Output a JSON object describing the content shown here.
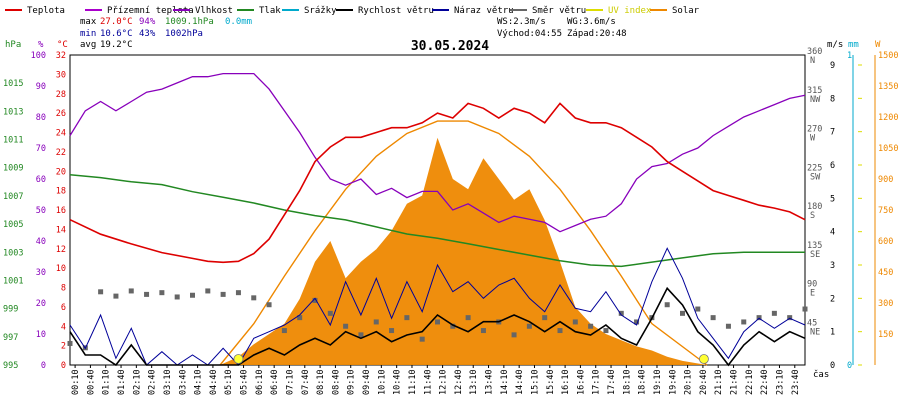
{
  "chart_data": {
    "type": "line",
    "title": "30.05.2024",
    "xlabel": "čas",
    "legend": [
      {
        "name": "Teplota",
        "color": "#dd0000"
      },
      {
        "name": "Přízemní teplota",
        "color": "#aa00cc"
      },
      {
        "name": "Vlhkost",
        "color": "#8800bb"
      },
      {
        "name": "Tlak",
        "color": "#228822"
      },
      {
        "name": "Srážky",
        "color": "#00aacc"
      },
      {
        "name": "Rychlost větru",
        "color": "#000000"
      },
      {
        "name": "Náraz větru",
        "color": "#000099"
      },
      {
        "name": "Směr větru",
        "color": "#666666"
      },
      {
        "name": "UV index",
        "color": "#dddd00"
      },
      {
        "name": "Solar",
        "color": "#ee8800"
      }
    ],
    "stats": {
      "max_label": "max",
      "max_temp": "27.0°C",
      "max_hum": "94%",
      "max_press": "1009.1hPa",
      "max_rain": "0.0mm",
      "min_label": "min",
      "min_temp": "10.6°C",
      "min_hum": "43%",
      "min_press": "1002hPa",
      "avg_label": "avg",
      "avg_temp": "19.2°C",
      "ws": "WS:2.3m/s",
      "wg": "WG:3.6m/s",
      "sunrise": "Východ:04:55",
      "sunset": "Západ:20:48"
    },
    "axes": {
      "hpa": {
        "unit": "hPa",
        "color": "#228822",
        "ticks": [
          "1015",
          "1013",
          "1011",
          "1009",
          "1007",
          "1005",
          "1003",
          "1001",
          "999",
          "997",
          "995"
        ],
        "range": [
          995,
          1017
        ]
      },
      "pct": {
        "unit": "%",
        "color": "#8800bb",
        "ticks": [
          "100",
          "90",
          "80",
          "70",
          "60",
          "50",
          "40",
          "30",
          "20",
          "10",
          "0"
        ],
        "range": [
          0,
          100
        ]
      },
      "degc": {
        "unit": "°C",
        "color": "#dd0000",
        "ticks": [
          "32",
          "30",
          "28",
          "26",
          "24",
          "22",
          "20",
          "18",
          "16",
          "14",
          "12",
          "10",
          "8",
          "6",
          "4",
          "2",
          "0"
        ],
        "range": [
          0,
          32
        ]
      },
      "dir": {
        "ticks": [
          "360 N",
          "315 NW",
          "270 W",
          "225 SW",
          "180 S",
          "135 SE",
          "90 E",
          "45 NE"
        ],
        "range": [
          0,
          360
        ]
      },
      "ms": {
        "unit": "m/s",
        "color": "#000000",
        "ticks": [
          "9",
          "8",
          "7",
          "6",
          "5",
          "4",
          "3",
          "2",
          "1",
          "0"
        ],
        "range": [
          0,
          9.3
        ]
      },
      "mm": {
        "unit": "mm",
        "color": "#00aacc",
        "ticks": [
          "1",
          "0"
        ],
        "range": [
          0,
          1
        ]
      },
      "w": {
        "unit": "W",
        "color": "#ee8800",
        "ticks": [
          "1500",
          "1350",
          "1200",
          "1050",
          "900",
          "750",
          "600",
          "450",
          "300",
          "150"
        ],
        "range": [
          0,
          1500
        ]
      }
    },
    "x_ticks": [
      "00:10",
      "00:40",
      "01:10",
      "01:40",
      "02:10",
      "02:40",
      "03:10",
      "03:40",
      "04:10",
      "04:40",
      "05:10",
      "05:40",
      "06:10",
      "06:40",
      "07:10",
      "07:40",
      "08:10",
      "08:40",
      "09:10",
      "09:40",
      "10:10",
      "10:40",
      "11:10",
      "11:40",
      "12:10",
      "12:40",
      "13:10",
      "13:40",
      "14:10",
      "14:40",
      "15:10",
      "15:40",
      "16:10",
      "16:40",
      "17:10",
      "17:40",
      "18:10",
      "18:40",
      "19:10",
      "19:40",
      "20:10",
      "20:40",
      "21:10",
      "21:40",
      "22:10",
      "22:40",
      "23:10",
      "23:40"
    ],
    "x_range": [
      0,
      24
    ],
    "temperature": [
      [
        0,
        15
      ],
      [
        1,
        13.5
      ],
      [
        2,
        12.5
      ],
      [
        3,
        11.6
      ],
      [
        4,
        11
      ],
      [
        4.5,
        10.7
      ],
      [
        5,
        10.6
      ],
      [
        5.5,
        10.7
      ],
      [
        6,
        11.5
      ],
      [
        6.5,
        13
      ],
      [
        7,
        15.5
      ],
      [
        7.5,
        18
      ],
      [
        8,
        21
      ],
      [
        8.5,
        22.5
      ],
      [
        9,
        23.5
      ],
      [
        9.5,
        23.5
      ],
      [
        10,
        24
      ],
      [
        10.5,
        24.5
      ],
      [
        11,
        24.5
      ],
      [
        11.5,
        25
      ],
      [
        12,
        26
      ],
      [
        12.5,
        25.5
      ],
      [
        13,
        27
      ],
      [
        13.5,
        26.5
      ],
      [
        14,
        25.5
      ],
      [
        14.5,
        26.5
      ],
      [
        15,
        26
      ],
      [
        15.5,
        25
      ],
      [
        16,
        27
      ],
      [
        16.5,
        25.5
      ],
      [
        17,
        25
      ],
      [
        17.5,
        25
      ],
      [
        18,
        24.5
      ],
      [
        18.5,
        23.5
      ],
      [
        19,
        22.5
      ],
      [
        19.5,
        21
      ],
      [
        20,
        20
      ],
      [
        20.5,
        19
      ],
      [
        21,
        18
      ],
      [
        21.5,
        17.5
      ],
      [
        22,
        17
      ],
      [
        22.5,
        16.5
      ],
      [
        23,
        16.2
      ],
      [
        23.5,
        15.8
      ],
      [
        24,
        15
      ]
    ],
    "humidity": [
      [
        0,
        74
      ],
      [
        0.5,
        82
      ],
      [
        1,
        85
      ],
      [
        1.5,
        82
      ],
      [
        2,
        85
      ],
      [
        2.5,
        88
      ],
      [
        3,
        89
      ],
      [
        3.5,
        91
      ],
      [
        4,
        93
      ],
      [
        4.5,
        93
      ],
      [
        5,
        94
      ],
      [
        5.5,
        94
      ],
      [
        6,
        94
      ],
      [
        6.5,
        89
      ],
      [
        7,
        82
      ],
      [
        7.5,
        75
      ],
      [
        8,
        67
      ],
      [
        8.5,
        60
      ],
      [
        9,
        58
      ],
      [
        9.5,
        60
      ],
      [
        10,
        55
      ],
      [
        10.5,
        57
      ],
      [
        11,
        54
      ],
      [
        11.5,
        56
      ],
      [
        12,
        56
      ],
      [
        12.5,
        50
      ],
      [
        13,
        52
      ],
      [
        13.5,
        49
      ],
      [
        14,
        46
      ],
      [
        14.5,
        48
      ],
      [
        15,
        47
      ],
      [
        15.5,
        46
      ],
      [
        16,
        43
      ],
      [
        16.5,
        45
      ],
      [
        17,
        47
      ],
      [
        17.5,
        48
      ],
      [
        18,
        52
      ],
      [
        18.5,
        60
      ],
      [
        19,
        64
      ],
      [
        19.5,
        65
      ],
      [
        20,
        68
      ],
      [
        20.5,
        70
      ],
      [
        21,
        74
      ],
      [
        21.5,
        77
      ],
      [
        22,
        80
      ],
      [
        22.5,
        82
      ],
      [
        23,
        84
      ],
      [
        23.5,
        86
      ],
      [
        24,
        87
      ]
    ],
    "pressure": [
      [
        0,
        1008.5
      ],
      [
        1,
        1008.3
      ],
      [
        2,
        1008.0
      ],
      [
        3,
        1007.8
      ],
      [
        4,
        1007.3
      ],
      [
        5,
        1006.9
      ],
      [
        6,
        1006.5
      ],
      [
        7,
        1006.0
      ],
      [
        8,
        1005.6
      ],
      [
        9,
        1005.3
      ],
      [
        10,
        1004.8
      ],
      [
        11,
        1004.3
      ],
      [
        12,
        1004.0
      ],
      [
        13,
        1003.6
      ],
      [
        14,
        1003.2
      ],
      [
        15,
        1002.8
      ],
      [
        16,
        1002.4
      ],
      [
        17,
        1002.1
      ],
      [
        18,
        1002.0
      ],
      [
        19,
        1002.3
      ],
      [
        20,
        1002.6
      ],
      [
        21,
        1002.9
      ],
      [
        22,
        1003.0
      ],
      [
        23,
        1003.0
      ],
      [
        24,
        1003.0
      ]
    ],
    "wind_speed": [
      [
        0,
        1
      ],
      [
        0.5,
        0.3
      ],
      [
        1,
        0.3
      ],
      [
        1.5,
        0
      ],
      [
        2,
        0.6
      ],
      [
        2.5,
        0
      ],
      [
        3,
        0
      ],
      [
        3.5,
        0
      ],
      [
        4,
        0
      ],
      [
        4.5,
        0
      ],
      [
        5,
        0
      ],
      [
        5.5,
        0
      ],
      [
        6,
        0.3
      ],
      [
        6.5,
        0.5
      ],
      [
        7,
        0.3
      ],
      [
        7.5,
        0.6
      ],
      [
        8,
        0.8
      ],
      [
        8.5,
        0.6
      ],
      [
        9,
        1
      ],
      [
        9.5,
        0.8
      ],
      [
        10,
        1
      ],
      [
        10.5,
        0.7
      ],
      [
        11,
        0.9
      ],
      [
        11.5,
        1
      ],
      [
        12,
        1.5
      ],
      [
        12.5,
        1.2
      ],
      [
        13,
        1
      ],
      [
        13.5,
        1.3
      ],
      [
        14,
        1.3
      ],
      [
        14.5,
        1.5
      ],
      [
        15,
        1.3
      ],
      [
        15.5,
        1
      ],
      [
        16,
        1.3
      ],
      [
        16.5,
        1
      ],
      [
        17,
        0.9
      ],
      [
        17.5,
        1.2
      ],
      [
        18,
        0.8
      ],
      [
        18.5,
        0.6
      ],
      [
        19,
        1.4
      ],
      [
        19.5,
        2.3
      ],
      [
        20,
        1.8
      ],
      [
        20.5,
        1
      ],
      [
        21,
        0.6
      ],
      [
        21.5,
        0
      ],
      [
        22,
        0.6
      ],
      [
        22.5,
        1
      ],
      [
        23,
        0.7
      ],
      [
        23.5,
        1
      ],
      [
        24,
        0.8
      ]
    ],
    "wind_gust": [
      [
        0,
        1.2
      ],
      [
        0.5,
        0.5
      ],
      [
        1,
        1.5
      ],
      [
        1.5,
        0.2
      ],
      [
        2,
        1.1
      ],
      [
        2.5,
        0
      ],
      [
        3,
        0.4
      ],
      [
        3.5,
        0
      ],
      [
        4,
        0.3
      ],
      [
        4.5,
        0
      ],
      [
        5,
        0.5
      ],
      [
        5.5,
        0
      ],
      [
        6,
        0.8
      ],
      [
        6.5,
        1
      ],
      [
        7,
        1.2
      ],
      [
        7.5,
        1.5
      ],
      [
        8,
        2
      ],
      [
        8.5,
        1.2
      ],
      [
        9,
        2.5
      ],
      [
        9.5,
        1.5
      ],
      [
        10,
        2.6
      ],
      [
        10.5,
        1.4
      ],
      [
        11,
        2.5
      ],
      [
        11.5,
        1.6
      ],
      [
        12,
        3
      ],
      [
        12.5,
        2.2
      ],
      [
        13,
        2.5
      ],
      [
        13.5,
        2
      ],
      [
        14,
        2.4
      ],
      [
        14.5,
        2.6
      ],
      [
        15,
        2
      ],
      [
        15.5,
        1.6
      ],
      [
        16,
        2.4
      ],
      [
        16.5,
        1.7
      ],
      [
        17,
        1.6
      ],
      [
        17.5,
        2.2
      ],
      [
        18,
        1.5
      ],
      [
        18.5,
        1.2
      ],
      [
        19,
        2.5
      ],
      [
        19.5,
        3.5
      ],
      [
        20,
        2.6
      ],
      [
        20.5,
        1.4
      ],
      [
        21,
        0.8
      ],
      [
        21.5,
        0.2
      ],
      [
        22,
        1
      ],
      [
        22.5,
        1.4
      ],
      [
        23,
        1.1
      ],
      [
        23.5,
        1.4
      ],
      [
        24,
        1.2
      ]
    ],
    "wind_direction": [
      [
        0,
        25
      ],
      [
        0.5,
        20
      ],
      [
        1,
        85
      ],
      [
        1.5,
        80
      ],
      [
        2,
        86
      ],
      [
        2.5,
        82
      ],
      [
        3,
        84
      ],
      [
        3.5,
        79
      ],
      [
        4,
        81
      ],
      [
        4.5,
        86
      ],
      [
        5,
        82
      ],
      [
        5.5,
        84
      ],
      [
        6,
        78
      ],
      [
        6.5,
        70
      ],
      [
        7,
        40
      ],
      [
        7.5,
        55
      ],
      [
        8,
        75
      ],
      [
        8.5,
        60
      ],
      [
        9,
        45
      ],
      [
        9.5,
        35
      ],
      [
        10,
        50
      ],
      [
        10.5,
        40
      ],
      [
        11,
        55
      ],
      [
        11.5,
        30
      ],
      [
        12,
        50
      ],
      [
        12.5,
        45
      ],
      [
        13,
        55
      ],
      [
        13.5,
        40
      ],
      [
        14,
        50
      ],
      [
        14.5,
        35
      ],
      [
        15,
        45
      ],
      [
        15.5,
        55
      ],
      [
        16,
        40
      ],
      [
        16.5,
        50
      ],
      [
        17,
        45
      ],
      [
        17.5,
        40
      ],
      [
        18,
        60
      ],
      [
        18.5,
        50
      ],
      [
        19,
        55
      ],
      [
        19.5,
        70
      ],
      [
        20,
        60
      ],
      [
        20.5,
        65
      ],
      [
        21,
        55
      ],
      [
        21.5,
        45
      ],
      [
        22,
        50
      ],
      [
        22.5,
        55
      ],
      [
        23,
        60
      ],
      [
        23.5,
        55
      ],
      [
        24,
        65
      ]
    ],
    "solar": [
      [
        0,
        0
      ],
      [
        4.9,
        0
      ],
      [
        5.5,
        40
      ],
      [
        6,
        100
      ],
      [
        7,
        200
      ],
      [
        7.5,
        320
      ],
      [
        8,
        500
      ],
      [
        8.5,
        600
      ],
      [
        9,
        420
      ],
      [
        9.5,
        500
      ],
      [
        10,
        560
      ],
      [
        10.5,
        650
      ],
      [
        11,
        780
      ],
      [
        11.5,
        820
      ],
      [
        12,
        1100
      ],
      [
        12.5,
        900
      ],
      [
        13,
        850
      ],
      [
        13.5,
        1000
      ],
      [
        14,
        900
      ],
      [
        14.5,
        800
      ],
      [
        15,
        850
      ],
      [
        15.5,
        700
      ],
      [
        16,
        500
      ],
      [
        16.5,
        280
      ],
      [
        17,
        200
      ],
      [
        17.5,
        150
      ],
      [
        18,
        120
      ],
      [
        18.5,
        90
      ],
      [
        19,
        70
      ],
      [
        19.5,
        40
      ],
      [
        20,
        20
      ],
      [
        20.8,
        0
      ],
      [
        24,
        0
      ]
    ],
    "solar_theoretical": [
      [
        4.9,
        0
      ],
      [
        6,
        200
      ],
      [
        7,
        430
      ],
      [
        8,
        650
      ],
      [
        9,
        850
      ],
      [
        10,
        1010
      ],
      [
        11,
        1120
      ],
      [
        12,
        1180
      ],
      [
        13,
        1180
      ],
      [
        14,
        1120
      ],
      [
        15,
        1010
      ],
      [
        16,
        850
      ],
      [
        17,
        650
      ],
      [
        18,
        430
      ],
      [
        19,
        200
      ],
      [
        20.8,
        0
      ]
    ],
    "uv_markers": [
      [
        5.5,
        0
      ],
      [
        20.7,
        0
      ]
    ]
  }
}
